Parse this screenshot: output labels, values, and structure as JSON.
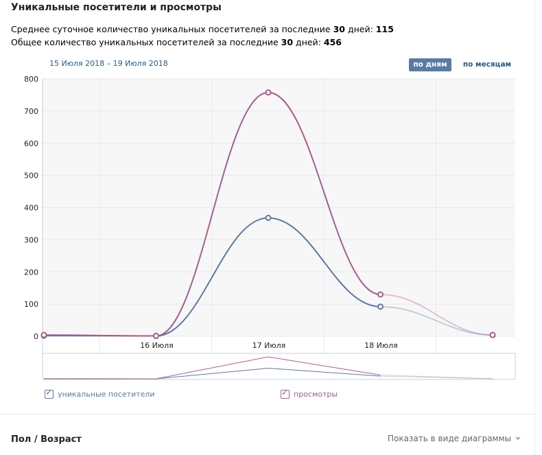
{
  "section": {
    "title": "Уникальные посетители и просмотры"
  },
  "stats": {
    "avg_prefix": "Среднее суточное количество уникальных посетителей за последние ",
    "avg_days": "30",
    "avg_mid": " дней: ",
    "avg_value": "115",
    "total_prefix": "Общее количество уникальных посетителей за последние ",
    "total_days": "30",
    "total_mid": " дней: ",
    "total_value": "456"
  },
  "date_range": "15 Июля 2018 – 19 Июля 2018",
  "toggle": {
    "days_label": "по дням",
    "months_label": "по месяцам"
  },
  "colors": {
    "visitors": "#5b7aa1",
    "views": "#a55d8f",
    "plot_bg": "#f7f7f7",
    "grid": "#e7e8ec"
  },
  "chart_data": {
    "type": "line",
    "x": [
      "15 Июля",
      "16 Июля",
      "17 Июля",
      "18 Июля",
      "19 Июля"
    ],
    "xtick_labels": [
      "",
      "16 Июля",
      "17 Июля",
      "18 Июля",
      ""
    ],
    "ylim": [
      0,
      800
    ],
    "yticks": [
      0,
      100,
      200,
      300,
      400,
      500,
      600,
      700,
      800
    ],
    "grid": true,
    "legend": "bottom",
    "series": [
      {
        "key": "visitors",
        "name": "уникальные посетители",
        "values": [
          2,
          1,
          368,
          92,
          4
        ]
      },
      {
        "key": "views",
        "name": "просмотры",
        "values": [
          4,
          1,
          758,
          130,
          4
        ]
      }
    ]
  },
  "section2": {
    "title": "Пол / Возраст",
    "toggle_label": "Показать в виде диаграммы"
  }
}
